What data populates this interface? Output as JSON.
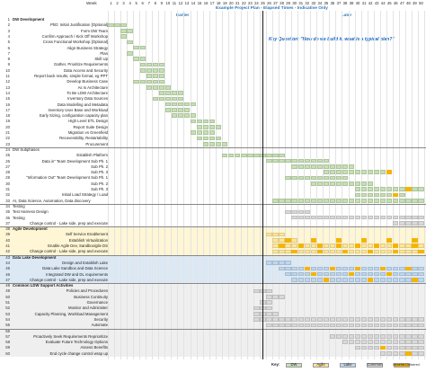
{
  "header": {
    "week_label": "Week",
    "title": "Example Project Plan - Elapsed Times - Indicative Only",
    "earlier_label": "Earlier",
    "later_label": "Later",
    "key_question": "Key Question: \"How do we build it, what is a typical plan?\""
  },
  "weeks": [
    "1",
    "2",
    "3",
    "4",
    "5",
    "6",
    "7",
    "8",
    "9",
    "10",
    "11",
    "12",
    "13",
    "14",
    "15",
    "16",
    "17",
    "18",
    "19",
    "20",
    "21",
    "22",
    "23",
    "24",
    "25",
    "26",
    "27",
    "28",
    "29",
    "30",
    "31",
    "32",
    "33",
    "34",
    "35",
    "36",
    "37",
    "38",
    "39",
    "40",
    "41",
    "42",
    "43",
    "44",
    "45",
    "46",
    "47",
    "48",
    "49",
    "50"
  ],
  "colors": {
    "dw": "#c6e0b4",
    "agile": "#ffe699",
    "lake": "#bdd7ee",
    "common": "#d9d9d9",
    "benefits": "#f4b400",
    "band_dw": "#ffffff",
    "band_agile": "#fff6d5",
    "band_lake": "#dce9f5",
    "band_common": "#efefef",
    "earlier_later": "#2e75b6"
  },
  "rows": [
    {
      "n": "1",
      "label": "DW Development",
      "style": "section"
    },
    {
      "n": "2",
      "label": "PhD: Initial Justification [Optional]",
      "style": "right"
    },
    {
      "n": "3",
      "label": "Form DW Team",
      "style": "right"
    },
    {
      "n": "4",
      "label": "Confirm Approach / Kick Off Workshop",
      "style": "right"
    },
    {
      "n": "5",
      "label": "Cross Functional Workshop [Optional]",
      "style": "right"
    },
    {
      "n": "6",
      "label": "Align Business Strategy",
      "style": "right"
    },
    {
      "n": "7",
      "label": "Plan",
      "style": "right"
    },
    {
      "n": "8",
      "label": "Skill Up",
      "style": "right"
    },
    {
      "n": "9",
      "label": "Gather, Prioritize Requirements",
      "style": "right"
    },
    {
      "n": "10",
      "label": "Data Access and Security",
      "style": "right"
    },
    {
      "n": "11",
      "label": "Report back results, simple format, eg PPT",
      "style": "right"
    },
    {
      "n": "12",
      "label": "Develop Business Case",
      "style": "right"
    },
    {
      "n": "13",
      "label": "As Is Architecture",
      "style": "right"
    },
    {
      "n": "14",
      "label": "To Be LDW Architecture",
      "style": "right"
    },
    {
      "n": "15",
      "label": "Inventory Data Sources",
      "style": "right"
    },
    {
      "n": "16",
      "label": "Data Modelling and Metadata",
      "style": "right"
    },
    {
      "n": "17",
      "label": "Inventory User Base and Workload",
      "style": "right"
    },
    {
      "n": "18",
      "label": "Early Sizing, configuration capacity plan",
      "style": "right"
    },
    {
      "n": "19",
      "label": "High Level ETL Design",
      "style": "right"
    },
    {
      "n": "20",
      "label": "Report Suite Design",
      "style": "right"
    },
    {
      "n": "21",
      "label": "Migration vs Greenfield",
      "style": "right"
    },
    {
      "n": "22",
      "label": "Recoverability, Restartability",
      "style": "right"
    },
    {
      "n": "23",
      "label": "Procurement",
      "style": "right"
    },
    {
      "n": "24",
      "label": "DW Subphases",
      "style": "sectionplain"
    },
    {
      "n": "25",
      "label": "Establish Platform",
      "style": "right"
    },
    {
      "n": "26",
      "label": "Data in\" Team Development Sub Ph. 1",
      "style": "right"
    },
    {
      "n": "27",
      "label": "Sub Ph. 2",
      "style": "right"
    },
    {
      "n": "28",
      "label": "Sub Ph. 3",
      "style": "right"
    },
    {
      "n": "29",
      "label": "\"Information Out\" Team Development Sub Ph. 1",
      "style": "right"
    },
    {
      "n": "30",
      "label": "Sub Ph. 2",
      "style": "right"
    },
    {
      "n": "31",
      "label": "Sub Ph. 3",
      "style": "right"
    },
    {
      "n": "32",
      "label": "Initial Load Strategy / Load",
      "style": "right"
    },
    {
      "n": "33",
      "label": "AI, Data Science, Automation, Data discovery",
      "style": "left"
    },
    {
      "n": "34",
      "label": "Testing",
      "style": "left"
    },
    {
      "n": "35",
      "label": "Test Harness Design",
      "style": "left"
    },
    {
      "n": "36",
      "label": "Testing",
      "style": "left"
    },
    {
      "n": "37",
      "label": "Change control - Lake side, prep and execute",
      "style": "right"
    },
    {
      "n": "38",
      "label": "Agile Development",
      "style": "section"
    },
    {
      "n": "39",
      "label": "Self Service Enablement",
      "style": "right"
    },
    {
      "n": "40",
      "label": "Establish Virtualization",
      "style": "right"
    },
    {
      "n": "41",
      "label": "Enable Agile Dev, Sandbox/gile DS",
      "style": "right"
    },
    {
      "n": "42",
      "label": "Change control - Lake side, prep and execute",
      "style": "right"
    },
    {
      "n": "43",
      "label": "Data Lake Development",
      "style": "section"
    },
    {
      "n": "44",
      "label": "Design and Establish Lake",
      "style": "right"
    },
    {
      "n": "45",
      "label": "Data Lake Sandbox and Data Science",
      "style": "right"
    },
    {
      "n": "46",
      "label": "Integrated DW and DL requirements",
      "style": "right"
    },
    {
      "n": "47",
      "label": "Change control - Lake side, prep and execute",
      "style": "right"
    },
    {
      "n": "48",
      "label": "Common LDW Support Activities",
      "style": "section"
    },
    {
      "n": "49",
      "label": "Policies and Procedures",
      "style": "right"
    },
    {
      "n": "50",
      "label": "Business Continuity",
      "style": "right"
    },
    {
      "n": "51",
      "label": "Governance",
      "style": "right"
    },
    {
      "n": "52",
      "label": "Monitor and Administer",
      "style": "right"
    },
    {
      "n": "53",
      "label": "Capacity Planning, Workload Management",
      "style": "right"
    },
    {
      "n": "54",
      "label": "Security",
      "style": "right"
    },
    {
      "n": "55",
      "label": "Automate",
      "style": "right"
    },
    {
      "n": "56",
      "label": "",
      "style": "right"
    },
    {
      "n": "57",
      "label": "Proactively Seek Requirements Reprioritize",
      "style": "right"
    },
    {
      "n": "58",
      "label": "Evaluate Future Technology Options",
      "style": "right"
    },
    {
      "n": "59",
      "label": "Assess Benefits",
      "style": "right"
    },
    {
      "n": "60",
      "label": "End cycle change control wrap up",
      "style": "right"
    }
  ],
  "legend": {
    "key_label": "Key:",
    "items": [
      {
        "label": "DW",
        "color": "#c6e0b4"
      },
      {
        "label": "Agile",
        "color": "#ffe699"
      },
      {
        "label": "Lake",
        "color": "#bdd7ee"
      },
      {
        "label": "Common",
        "color": "#d9d9d9"
      },
      {
        "label": "Benefits Delivered",
        "color": "#f4b400"
      }
    ]
  }
}
